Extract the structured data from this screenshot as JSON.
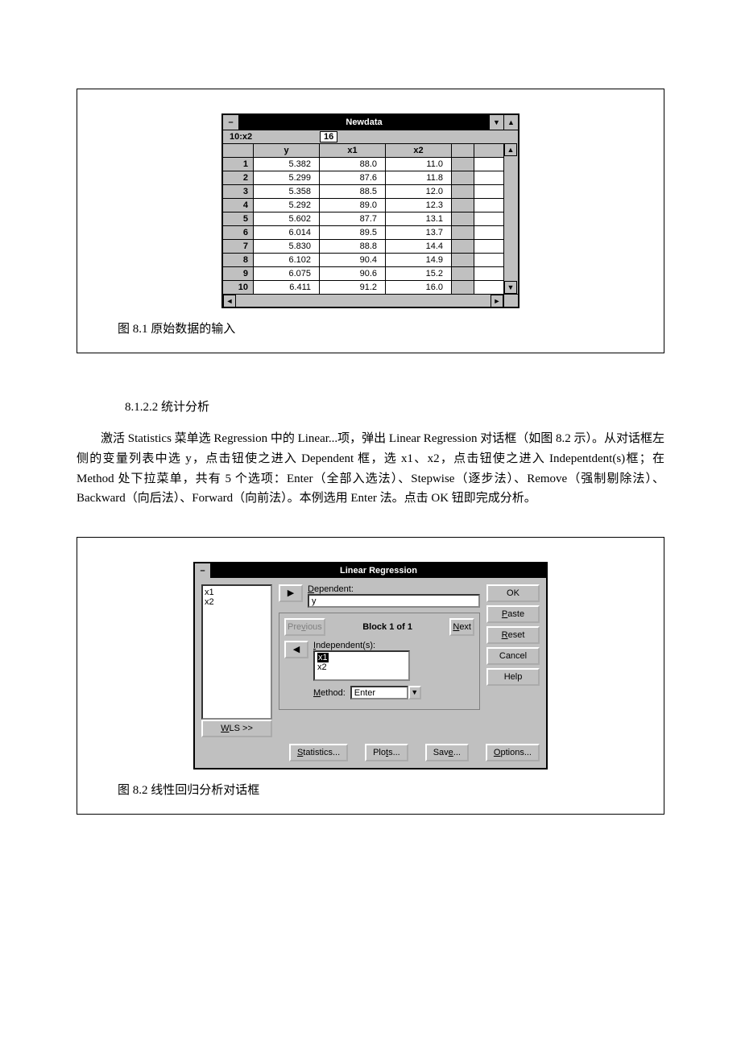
{
  "fig1": {
    "title": "Newdata",
    "cellref": "10:x2",
    "cellval": "16",
    "headers": [
      "y",
      "x1",
      "x2"
    ],
    "rows": [
      {
        "n": "1",
        "y": "5.382",
        "x1": "88.0",
        "x2": "11.0"
      },
      {
        "n": "2",
        "y": "5.299",
        "x1": "87.6",
        "x2": "11.8"
      },
      {
        "n": "3",
        "y": "5.358",
        "x1": "88.5",
        "x2": "12.0"
      },
      {
        "n": "4",
        "y": "5.292",
        "x1": "89.0",
        "x2": "12.3"
      },
      {
        "n": "5",
        "y": "5.602",
        "x1": "87.7",
        "x2": "13.1"
      },
      {
        "n": "6",
        "y": "6.014",
        "x1": "89.5",
        "x2": "13.7"
      },
      {
        "n": "7",
        "y": "5.830",
        "x1": "88.8",
        "x2": "14.4"
      },
      {
        "n": "8",
        "y": "6.102",
        "x1": "90.4",
        "x2": "14.9"
      },
      {
        "n": "9",
        "y": "6.075",
        "x1": "90.6",
        "x2": "15.2"
      },
      {
        "n": "10",
        "y": "6.411",
        "x1": "91.2",
        "x2": "16.0"
      }
    ],
    "caption": "图 8.1 原始数据的输入"
  },
  "section": "8.1.2.2 统计分析",
  "para1": "激活 Statistics 菜单选 Regression 中的 Linear...项，弹出 Linear Regression 对话框（如图 8.2 示）。从对话框左侧的变量列表中选 y，点击钮使之进入 Dependent 框，选 x1、x2，点击钮使之进入 Indepentdent(s)框；在 Method 处下拉菜单，共有 5 个选项：Enter（全部入选法）、Stepwise（逐步法）、Remove（强制剔除法）、Backward（向后法）、Forward（向前法）。本例选用 Enter 法。点击 OK 钮即完成分析。",
  "fig2": {
    "title": "Linear Regression",
    "vars": [
      "x1",
      "x2"
    ],
    "dep_label": "Dependent:",
    "dep_value": "y",
    "prev": "Previous",
    "block": "Block 1 of 1",
    "next": "Next",
    "indep_label": "Independent(s):",
    "indep": [
      "x1",
      "x2"
    ],
    "method_label": "Method:",
    "method_value": "Enter",
    "wls": "WLS >>",
    "btn_stats": "Statistics...",
    "btn_plots": "Plots...",
    "btn_save": "Save...",
    "btn_options": "Options...",
    "ok": "OK",
    "paste": "Paste",
    "reset": "Reset",
    "cancel": "Cancel",
    "help": "Help",
    "caption": "图 8.2 线性回归分析对话框"
  }
}
